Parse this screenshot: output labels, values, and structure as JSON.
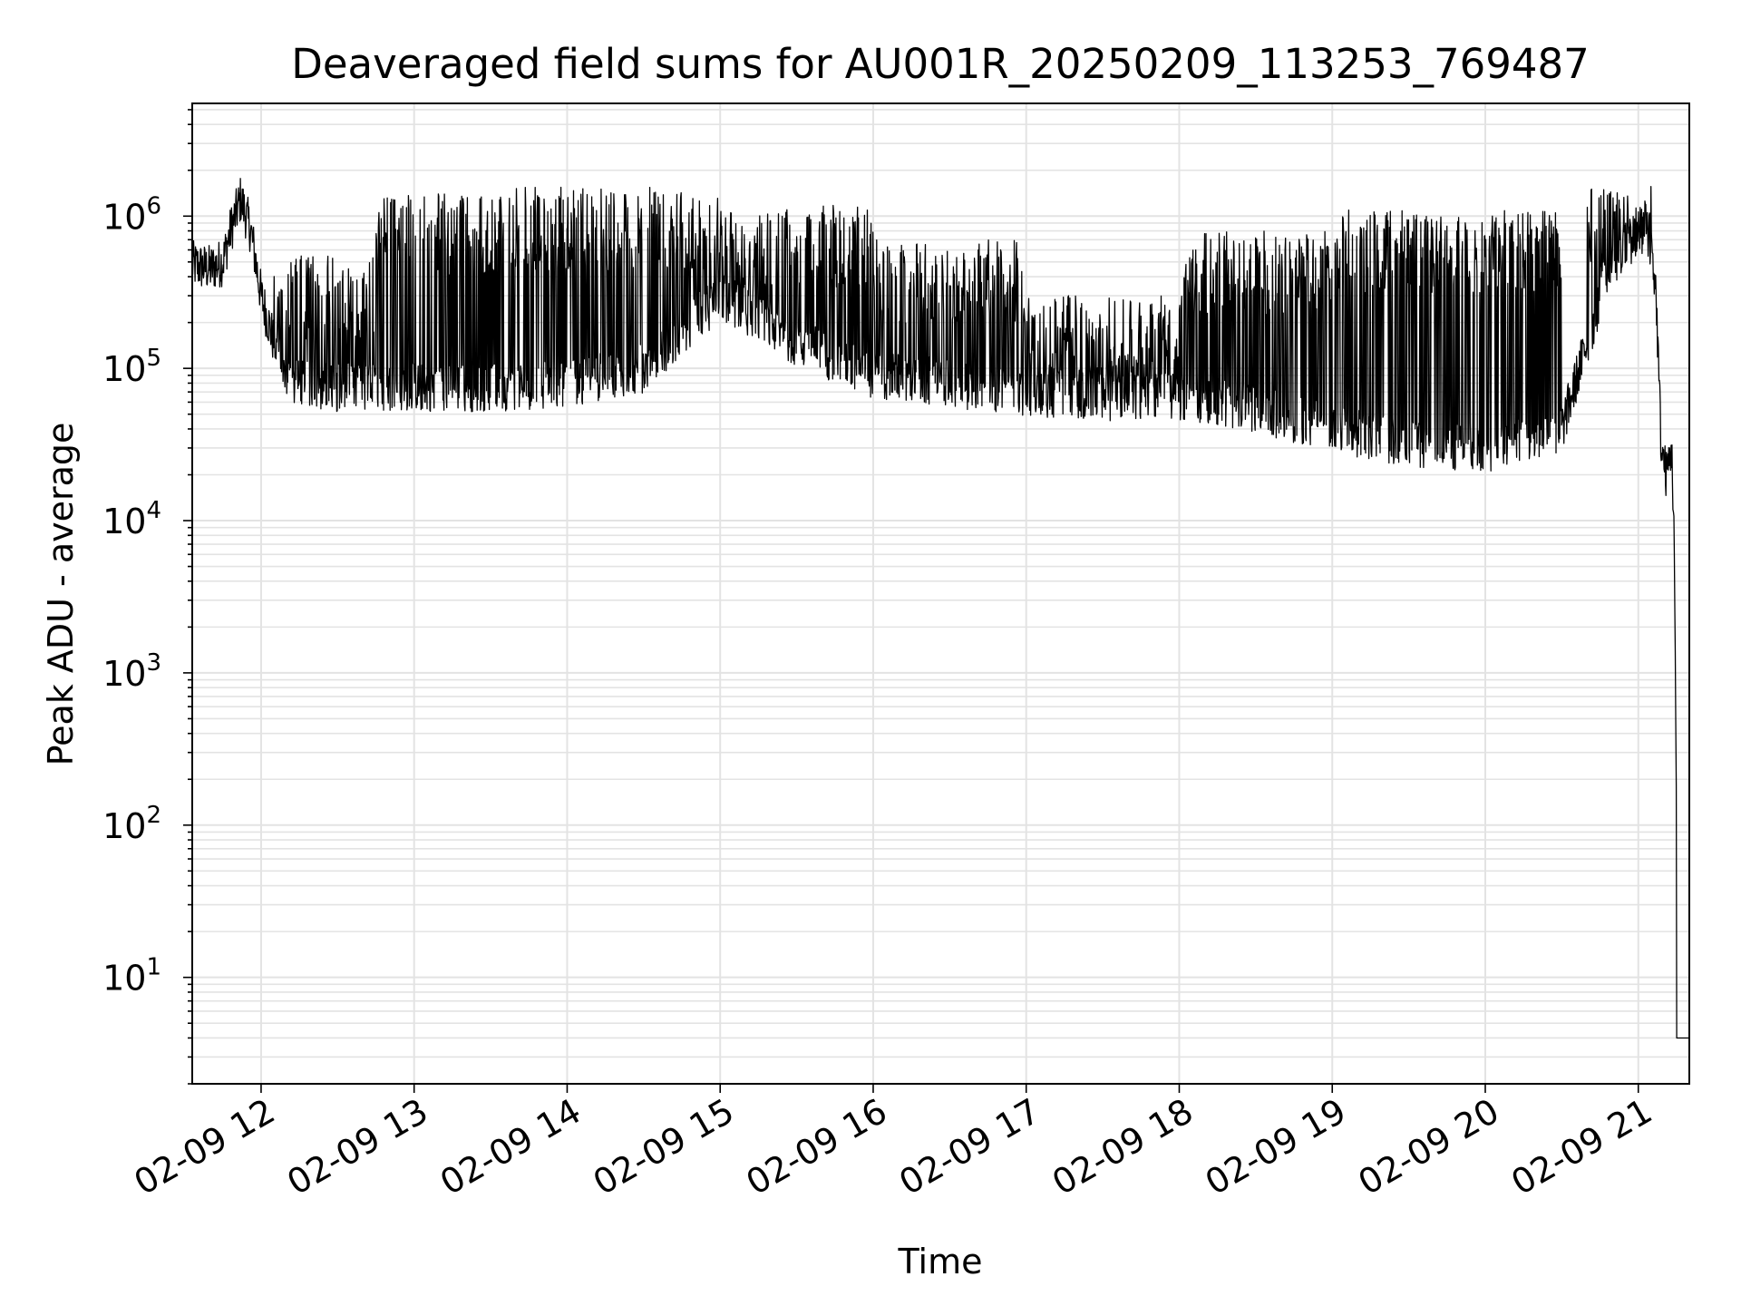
{
  "chart_data": {
    "type": "line",
    "title": "Deaveraged field sums for AU001R_20250209_113253_769487",
    "xlabel": "Time",
    "ylabel": "Peak ADU - average",
    "y_scale": "log",
    "ylim": [
      2,
      5500000
    ],
    "xlim": [
      "2025-02-09 11:33",
      "2025-02-09 21:20"
    ],
    "grid": true,
    "line_color": "#000000",
    "grid_color": "#e3e3e3",
    "x_ticks": [
      {
        "value": "2025-02-09 12:00",
        "label": "02-09 12"
      },
      {
        "value": "2025-02-09 13:00",
        "label": "02-09 13"
      },
      {
        "value": "2025-02-09 14:00",
        "label": "02-09 14"
      },
      {
        "value": "2025-02-09 15:00",
        "label": "02-09 15"
      },
      {
        "value": "2025-02-09 16:00",
        "label": "02-09 16"
      },
      {
        "value": "2025-02-09 17:00",
        "label": "02-09 17"
      },
      {
        "value": "2025-02-09 18:00",
        "label": "02-09 18"
      },
      {
        "value": "2025-02-09 19:00",
        "label": "02-09 19"
      },
      {
        "value": "2025-02-09 20:00",
        "label": "02-09 20"
      },
      {
        "value": "2025-02-09 21:00",
        "label": "02-09 21"
      }
    ],
    "y_ticks": [
      {
        "value": 10,
        "base": "10",
        "exp": "1"
      },
      {
        "value": 100,
        "base": "10",
        "exp": "2"
      },
      {
        "value": 1000,
        "base": "10",
        "exp": "3"
      },
      {
        "value": 10000,
        "base": "10",
        "exp": "4"
      },
      {
        "value": 100000,
        "base": "10",
        "exp": "5"
      },
      {
        "value": 1000000,
        "base": "10",
        "exp": "6"
      }
    ],
    "series": [
      {
        "baseline": [
          [
            "2025-02-09 11:33",
            480000
          ],
          [
            "2025-02-09 11:40",
            450000
          ],
          [
            "2025-02-09 11:45",
            500000
          ],
          [
            "2025-02-09 11:48",
            800000
          ],
          [
            "2025-02-09 11:52",
            1300000
          ],
          [
            "2025-02-09 11:56",
            800000
          ],
          [
            "2025-02-09 12:00",
            300000
          ],
          [
            "2025-02-09 12:05",
            150000
          ],
          [
            "2025-02-09 12:10",
            80000
          ],
          [
            "2025-02-09 12:30",
            75000
          ],
          [
            "2025-02-09 13:00",
            75000
          ],
          [
            "2025-02-09 13:30",
            75000
          ],
          [
            "2025-02-09 14:00",
            80000
          ],
          [
            "2025-02-09 14:30",
            100000
          ],
          [
            "2025-02-09 15:00",
            300000
          ],
          [
            "2025-02-09 15:30",
            150000
          ],
          [
            "2025-02-09 16:00",
            90000
          ],
          [
            "2025-02-09 16:30",
            80000
          ],
          [
            "2025-02-09 17:00",
            70000
          ],
          [
            "2025-02-09 17:30",
            65000
          ],
          [
            "2025-02-09 18:00",
            65000
          ],
          [
            "2025-02-09 18:30",
            55000
          ],
          [
            "2025-02-09 19:00",
            40000
          ],
          [
            "2025-02-09 19:30",
            32000
          ],
          [
            "2025-02-09 20:00",
            30000
          ],
          [
            "2025-02-09 20:30",
            40000
          ],
          [
            "2025-02-09 20:40",
            150000
          ],
          [
            "2025-02-09 20:50",
            500000
          ],
          [
            "2025-02-09 21:00",
            800000
          ],
          [
            "2025-02-09 21:04",
            1000000
          ],
          [
            "2025-02-09 21:07",
            300000
          ],
          [
            "2025-02-09 21:09",
            30000
          ],
          [
            "2025-02-09 21:11",
            20000
          ],
          [
            "2025-02-09 21:13",
            30000
          ],
          [
            "2025-02-09 21:14",
            10000
          ],
          [
            "2025-02-09 21:15",
            100
          ],
          [
            "2025-02-09 21:16",
            4
          ],
          [
            "2025-02-09 21:20",
            4
          ]
        ],
        "spike_bands": [
          {
            "start": "2025-02-09 12:05",
            "end": "2025-02-09 12:45",
            "peak": 550000
          },
          {
            "start": "2025-02-09 12:45",
            "end": "2025-02-09 13:30",
            "peak": 1400000
          },
          {
            "start": "2025-02-09 13:30",
            "end": "2025-02-09 15:00",
            "peak": 1550000
          },
          {
            "start": "2025-02-09 15:00",
            "end": "2025-02-09 16:00",
            "peak": 1200000
          },
          {
            "start": "2025-02-09 16:00",
            "end": "2025-02-09 17:00",
            "peak": 700000
          },
          {
            "start": "2025-02-09 17:00",
            "end": "2025-02-09 18:00",
            "peak": 300000
          },
          {
            "start": "2025-02-09 18:00",
            "end": "2025-02-09 19:00",
            "peak": 800000
          },
          {
            "start": "2025-02-09 19:00",
            "end": "2025-02-09 20:30",
            "peak": 1100000
          },
          {
            "start": "2025-02-09 20:40",
            "end": "2025-02-09 21:05",
            "peak": 1600000
          }
        ]
      }
    ]
  }
}
